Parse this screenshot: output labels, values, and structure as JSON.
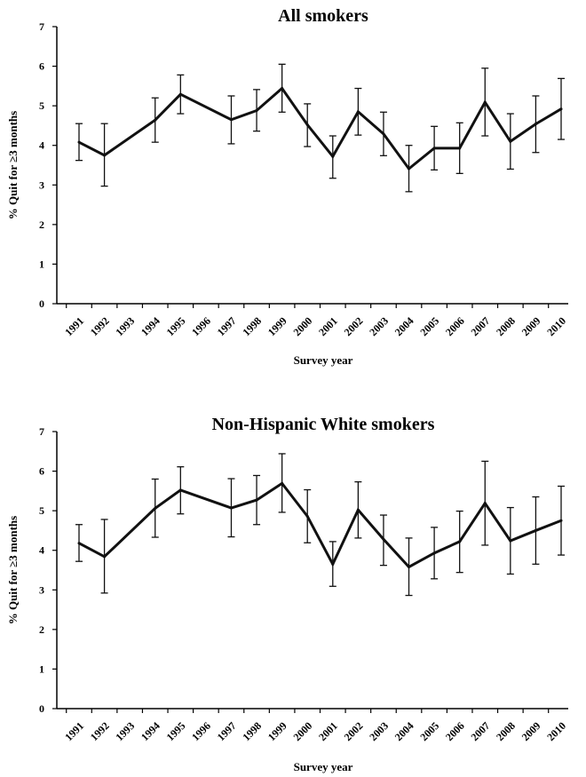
{
  "chart_data": [
    {
      "type": "line",
      "title": "All smokers",
      "xlabel": "Survey year",
      "ylabel": "% Quit for ≥3 months",
      "ylim": [
        0,
        7
      ],
      "yticks": [
        0,
        1,
        2,
        3,
        4,
        5,
        6,
        7
      ],
      "categories": [
        "1991",
        "1992",
        "1993",
        "1994",
        "1995",
        "1996",
        "1997",
        "1998",
        "1999",
        "2000",
        "2001",
        "2002",
        "2003",
        "2004",
        "2005",
        "2006",
        "2007",
        "2008",
        "2009",
        "2010"
      ],
      "series": [
        {
          "values": [
            4.08,
            3.75,
            null,
            4.64,
            5.29,
            null,
            4.65,
            4.88,
            5.44,
            4.52,
            3.72,
            4.85,
            4.29,
            3.41,
            3.93,
            3.93,
            5.09,
            4.1,
            4.54,
            4.92
          ],
          "error_low": [
            3.62,
            2.97,
            null,
            4.08,
            4.8,
            null,
            4.04,
            4.36,
            4.84,
            3.97,
            3.17,
            4.26,
            3.74,
            2.83,
            3.38,
            3.29,
            4.24,
            3.4,
            3.82,
            4.15
          ],
          "error_high": [
            4.55,
            4.55,
            null,
            5.2,
            5.78,
            null,
            5.25,
            5.41,
            6.05,
            5.05,
            4.24,
            5.44,
            4.84,
            4.0,
            4.48,
            4.57,
            5.95,
            4.8,
            5.25,
            5.69
          ]
        }
      ],
      "grid": false,
      "legend": "none"
    },
    {
      "type": "line",
      "title": "Non-Hispanic White smokers",
      "xlabel": "Survey year",
      "ylabel": "% Quit for ≥3 months",
      "ylim": [
        0,
        7
      ],
      "yticks": [
        0,
        1,
        2,
        3,
        4,
        5,
        6,
        7
      ],
      "categories": [
        "1991",
        "1992",
        "1993",
        "1994",
        "1995",
        "1996",
        "1997",
        "1998",
        "1999",
        "2000",
        "2001",
        "2002",
        "2003",
        "2004",
        "2005",
        "2006",
        "2007",
        "2008",
        "2009",
        "2010"
      ],
      "series": [
        {
          "values": [
            4.18,
            3.84,
            null,
            5.06,
            5.52,
            null,
            5.07,
            5.27,
            5.69,
            4.86,
            3.65,
            5.02,
            4.28,
            3.58,
            3.93,
            4.22,
            5.19,
            4.24,
            4.5,
            4.75
          ],
          "error_low": [
            3.72,
            2.92,
            null,
            4.33,
            4.92,
            null,
            4.34,
            4.65,
            4.96,
            4.19,
            3.09,
            4.31,
            3.62,
            2.86,
            3.28,
            3.44,
            4.13,
            3.4,
            3.65,
            3.88
          ],
          "error_high": [
            4.65,
            4.78,
            null,
            5.8,
            6.11,
            null,
            5.81,
            5.89,
            6.44,
            5.53,
            4.22,
            5.73,
            4.89,
            4.31,
            4.58,
            4.99,
            6.25,
            5.08,
            5.35,
            5.62
          ]
        }
      ],
      "grid": false,
      "legend": "none"
    }
  ]
}
